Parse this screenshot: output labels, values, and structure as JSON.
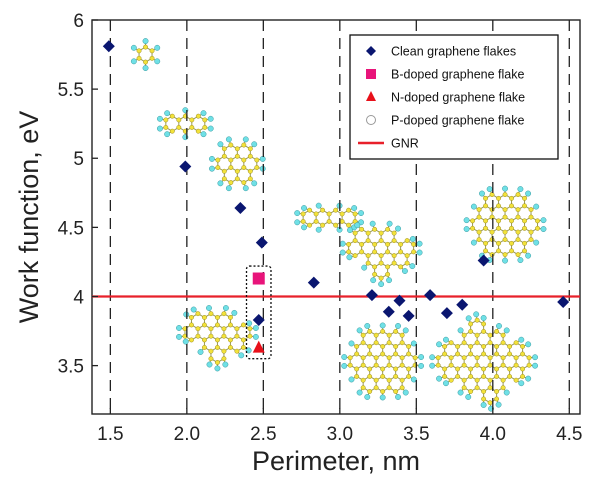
{
  "chart_data": {
    "type": "scatter",
    "xlabel": "Perimeter, nm",
    "ylabel": "Work function, eV",
    "xlim": [
      1.38,
      4.57
    ],
    "ylim": [
      3.15,
      6.0
    ],
    "xticks": [
      "1.5",
      "2.0",
      "2.5",
      "3.0",
      "3.5",
      "4.0",
      "4.5"
    ],
    "yticks": [
      "3.5",
      "4",
      "4.5",
      "5",
      "5.5",
      "6"
    ],
    "vertical_dashed_lines_x": [
      1.5,
      2.0,
      2.5,
      3.0,
      3.5,
      4.0,
      4.5
    ],
    "reference_line": {
      "name": "GNR",
      "y": 4.0,
      "color": "#e8202a"
    },
    "legend_position": "top-right",
    "series": [
      {
        "name": "Clean graphene flakes",
        "marker": "diamond",
        "color": "#0a1670",
        "x": [
          1.49,
          1.99,
          2.35,
          2.49,
          2.83,
          3.21,
          3.32,
          3.39,
          3.45,
          3.59,
          3.7,
          3.8,
          3.94,
          4.46,
          2.47
        ],
        "y": [
          5.81,
          4.94,
          4.64,
          4.39,
          4.1,
          4.01,
          3.89,
          3.97,
          3.86,
          4.01,
          3.88,
          3.94,
          4.26,
          3.96,
          3.83
        ]
      },
      {
        "name": "B-doped graphene flake",
        "marker": "square",
        "color": "#e8147a",
        "x": [
          2.47
        ],
        "y": [
          4.13
        ]
      },
      {
        "name": "N-doped graphene flake",
        "marker": "triangle",
        "color": "#e8101a",
        "x": [
          2.47
        ],
        "y": [
          3.63
        ]
      },
      {
        "name": "P-doped graphene flake",
        "marker": "circle-open",
        "color": "#999999",
        "x": [],
        "y": []
      }
    ],
    "legend_entries": [
      "Clean graphene flakes",
      "B-doped graphene flake",
      "N-doped graphene flake",
      "P-doped graphene flake",
      "GNR"
    ],
    "highlight_box": {
      "x": [
        2.39,
        2.55
      ],
      "y": [
        3.55,
        4.22
      ]
    },
    "molecule_insets": [
      {
        "rings": 1,
        "x": 1.73,
        "y": 5.75
      },
      {
        "rings": 3,
        "x": 1.99,
        "y": 5.25
      },
      {
        "rings": 7,
        "x": 2.33,
        "y": 4.96
      },
      {
        "rings": 4,
        "x": 2.93,
        "y": 4.57
      },
      {
        "rings": 12,
        "x": 3.27,
        "y": 4.35
      },
      {
        "rings": 19,
        "x": 4.08,
        "y": 4.52
      },
      {
        "rings": 12,
        "x": 2.2,
        "y": 3.74
      },
      {
        "rings": 19,
        "x": 3.28,
        "y": 3.53
      },
      {
        "rings": 27,
        "x": 3.94,
        "y": 3.53
      }
    ]
  }
}
